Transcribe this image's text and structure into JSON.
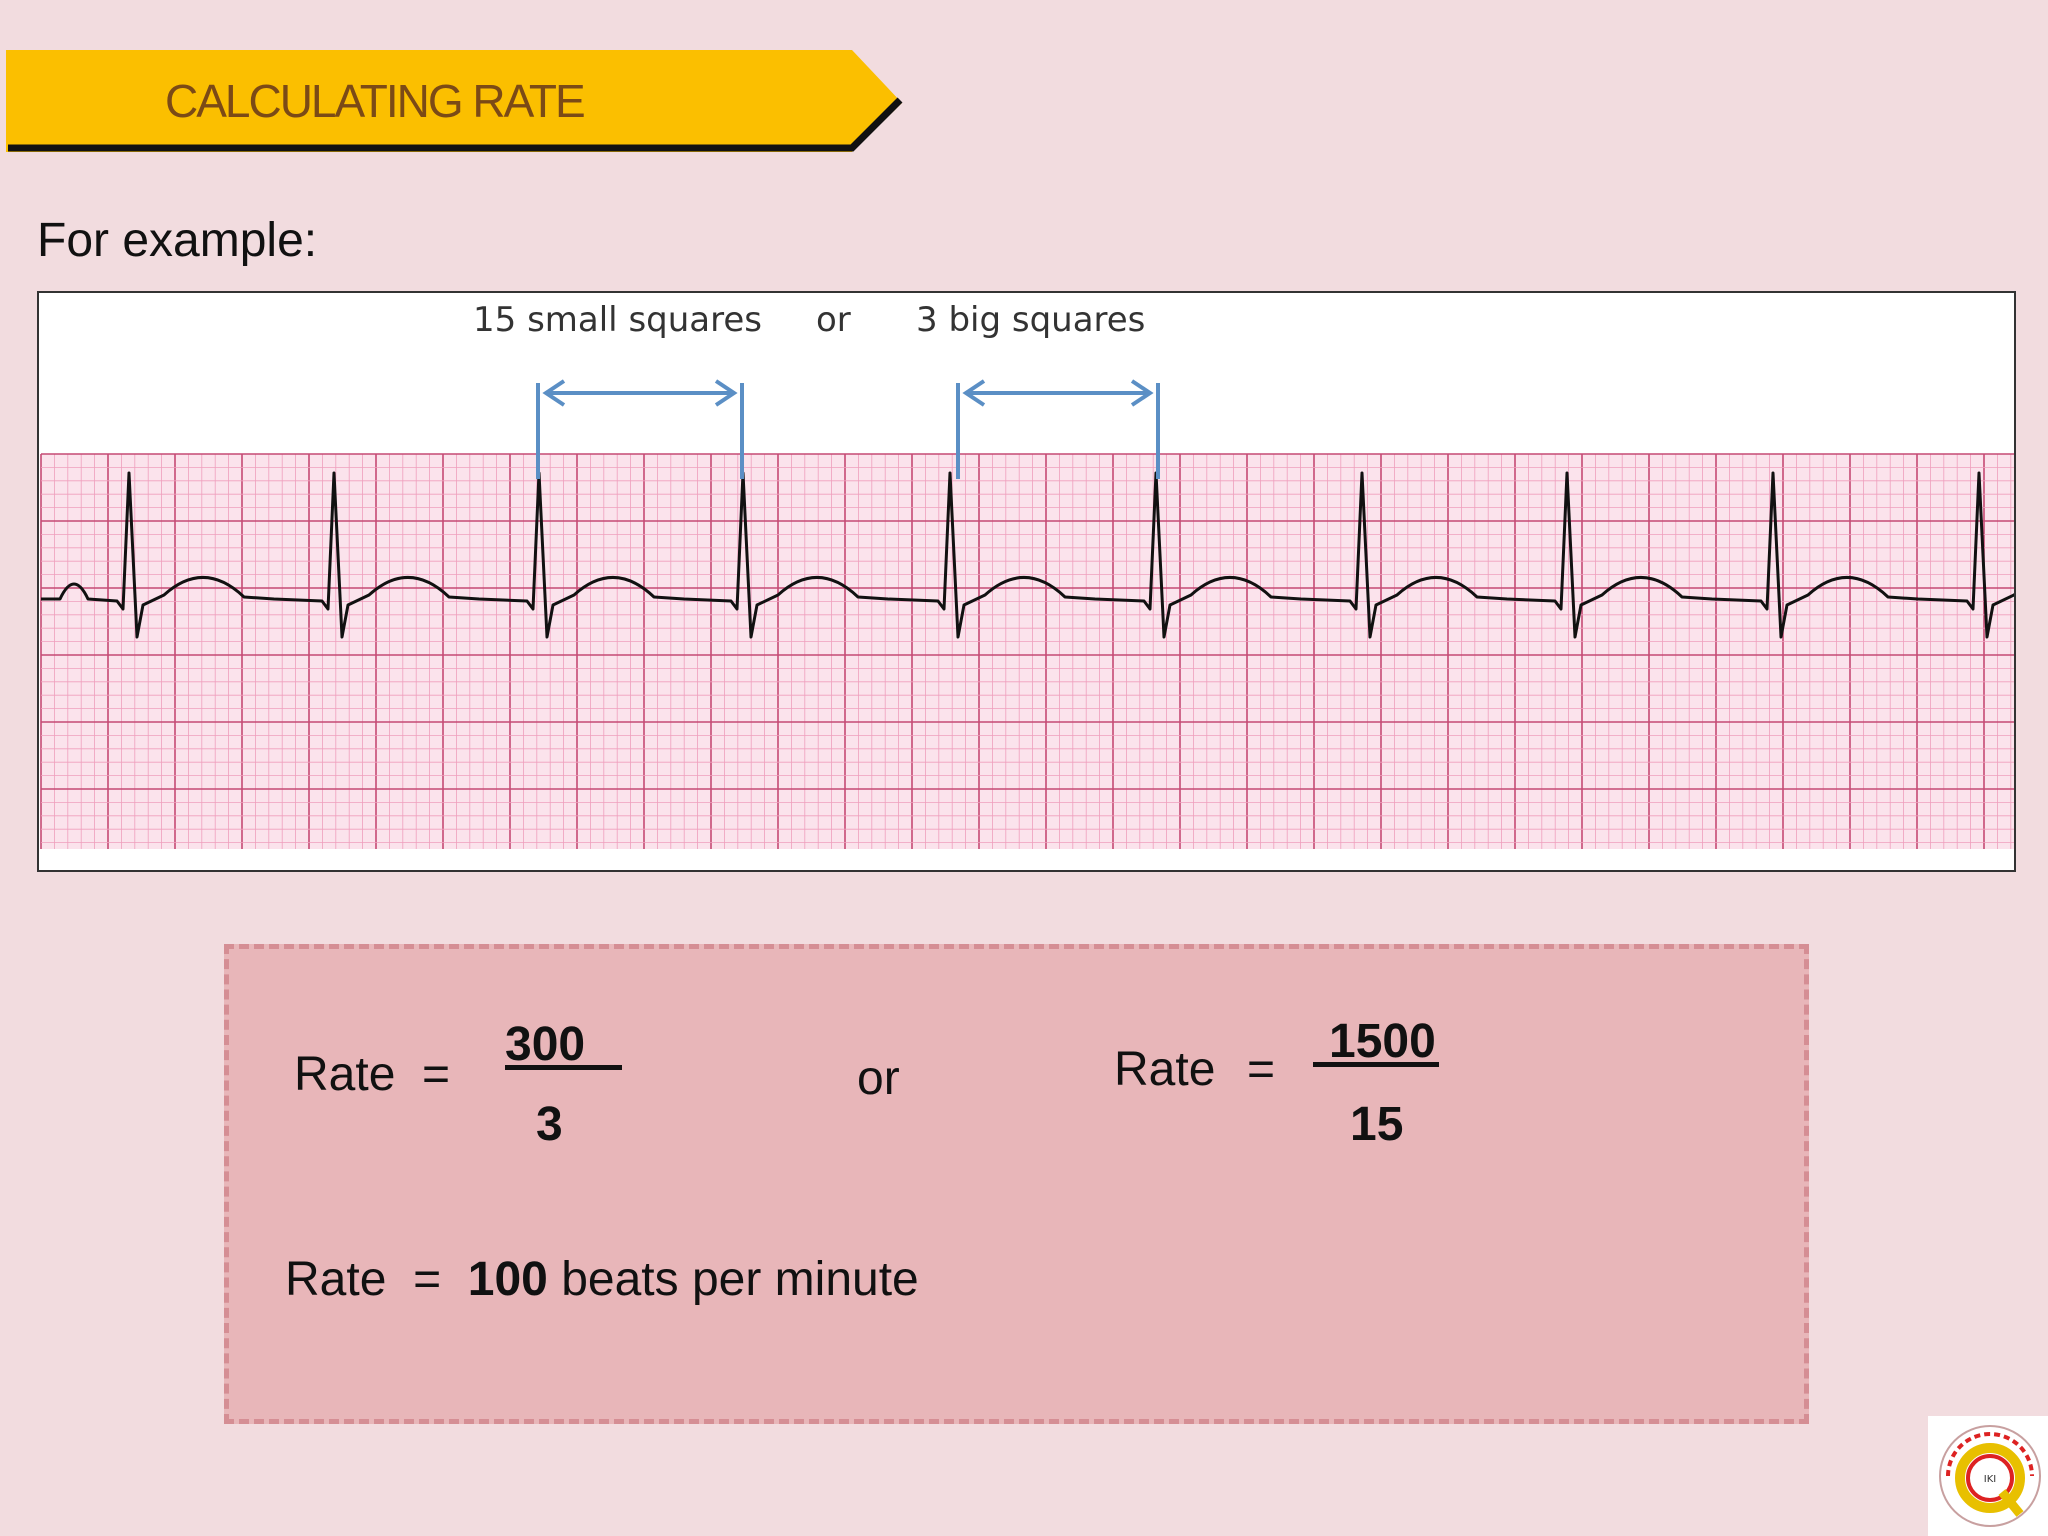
{
  "slide": {
    "title": "CALCULATING RATE",
    "intro": "For example:"
  },
  "ecg_figure": {
    "label_small": "15 small squares",
    "label_or": "or",
    "label_big": "3 big squares"
  },
  "calculation": {
    "formula1": {
      "lhs": "Rate",
      "eq": "=",
      "numerator": "300",
      "denominator": "3"
    },
    "or": "or",
    "formula2": {
      "lhs": "Rate",
      "eq": "=",
      "numerator": "1500",
      "denominator": "15"
    },
    "result": {
      "lhs": "Rate",
      "eq": "=",
      "value": "100",
      "unit": "beats per minute"
    }
  },
  "colors": {
    "background": "#f2dcdf",
    "banner": "#fbbf00",
    "banner_text": "#7b4a16",
    "grid_minor": "#ef9fbd",
    "grid_major": "#c54a74",
    "arrow": "#5b8fc5",
    "box_fill": "#e8b6b9",
    "box_border": "#d58e94"
  }
}
